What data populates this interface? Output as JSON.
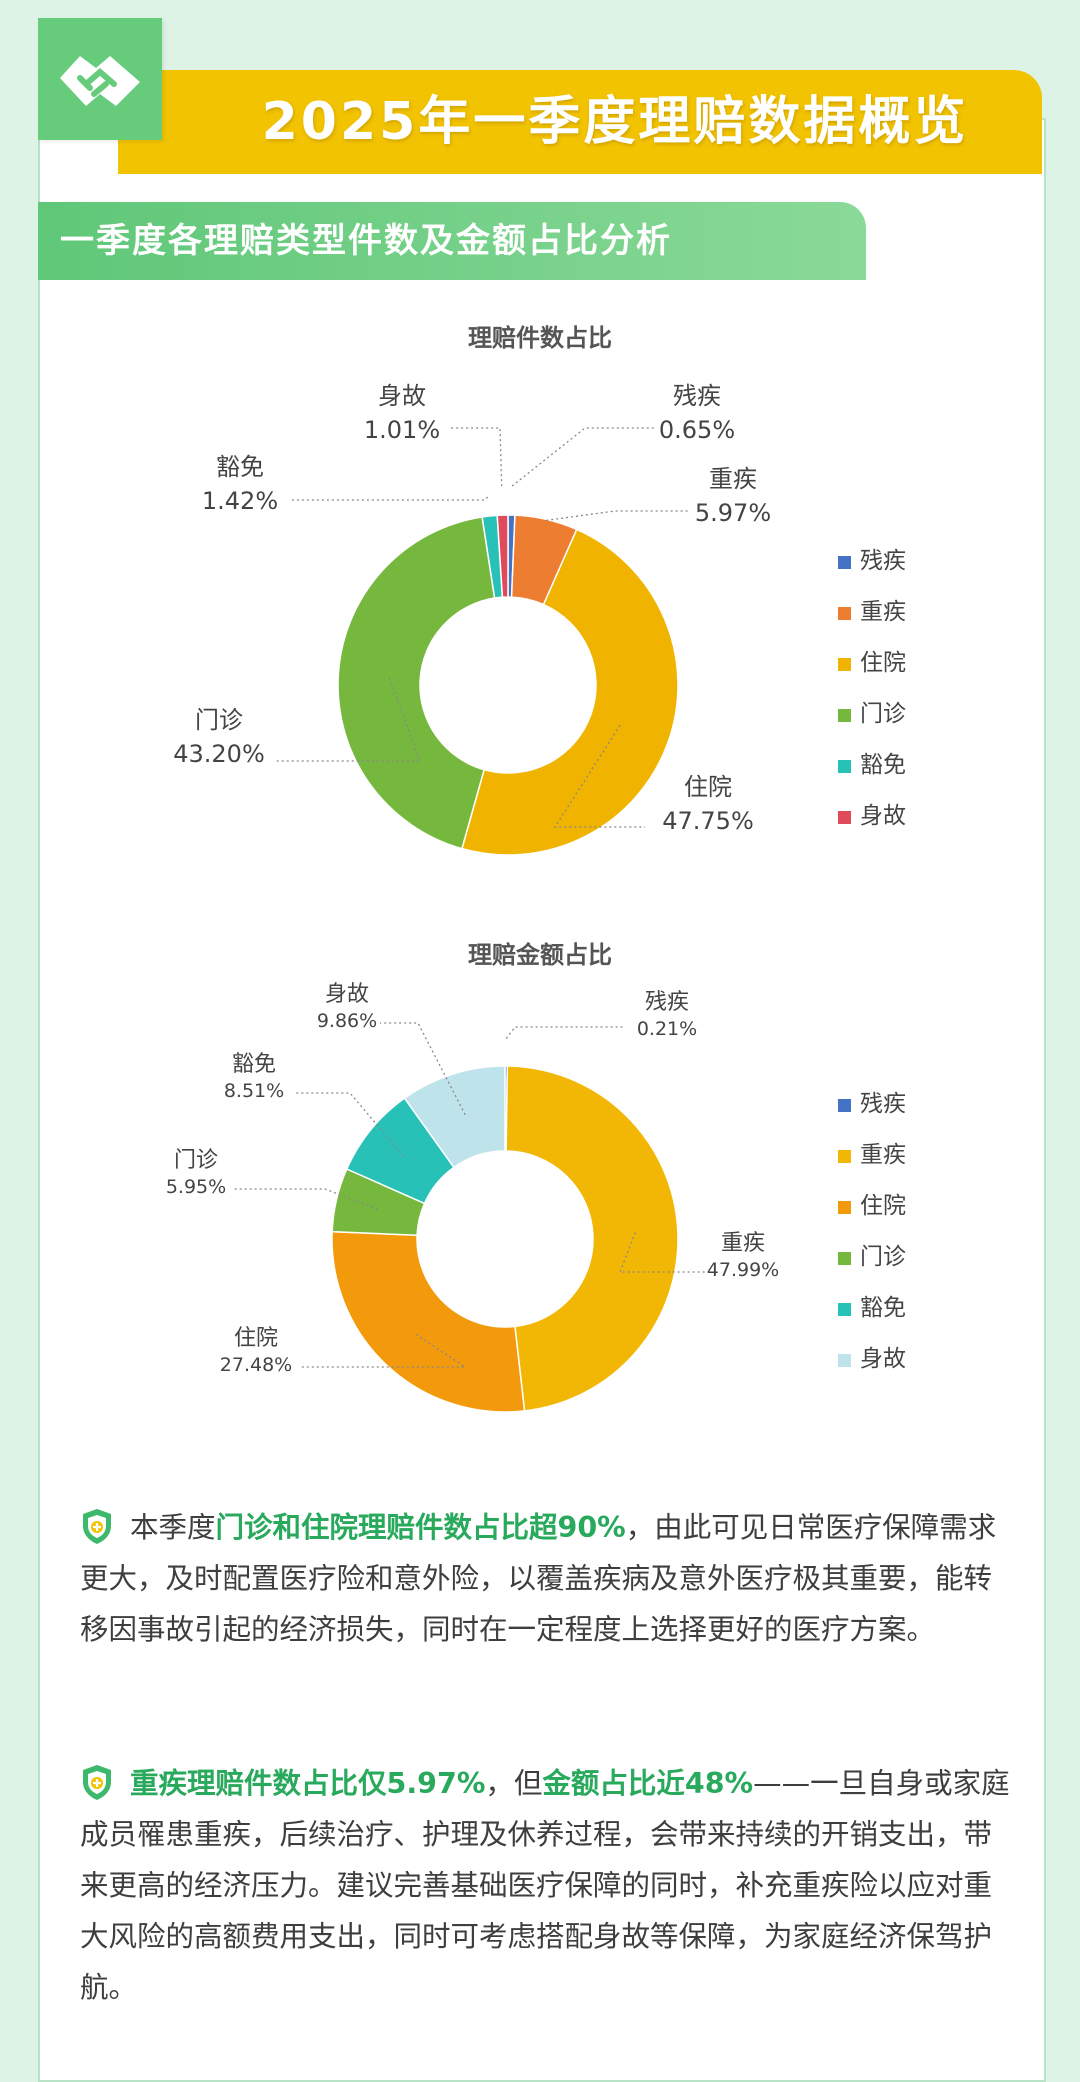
{
  "header": {
    "title": "2025年一季度理赔数据概览",
    "section_title": "一季度各理赔类型件数及金额占比分析"
  },
  "colors": {
    "残疾": "#4472c4",
    "重疾": "#ed7d31",
    "住院": "#f0b400",
    "门诊": "#76b83e",
    "豁免": "#27c1b8",
    "身故": "#e04b5c"
  },
  "chart_data": [
    {
      "type": "pie",
      "donut": true,
      "title": "理赔件数占比",
      "legend_position": "right",
      "slices": [
        {
          "label": "残疾",
          "value": 0.65,
          "value_label": "0.65%",
          "color": "#4472c4"
        },
        {
          "label": "重疾",
          "value": 5.97,
          "value_label": "5.97%",
          "color": "#ed7d31"
        },
        {
          "label": "住院",
          "value": 47.75,
          "value_label": "47.75%",
          "color": "#f0b400"
        },
        {
          "label": "门诊",
          "value": 43.2,
          "value_label": "43.20%",
          "color": "#76b83e"
        },
        {
          "label": "豁免",
          "value": 1.42,
          "value_label": "1.42%",
          "color": "#27c1b8"
        },
        {
          "label": "身故",
          "value": 1.01,
          "value_label": "1.01%",
          "color": "#e04b5c"
        }
      ]
    },
    {
      "type": "pie",
      "donut": true,
      "title": "理赔金额占比",
      "legend_position": "right",
      "slices": [
        {
          "label": "残疾",
          "value": 0.21,
          "value_label": "0.21%",
          "color": "#4472c4"
        },
        {
          "label": "重疾",
          "value": 47.99,
          "value_label": "47.99%",
          "color": "#f2b705"
        },
        {
          "label": "住院",
          "value": 27.48,
          "value_label": "27.48%",
          "color": "#f39a0c"
        },
        {
          "label": "门诊",
          "value": 5.95,
          "value_label": "5.95%",
          "color": "#76b83e"
        },
        {
          "label": "豁免",
          "value": 8.51,
          "value_label": "8.51%",
          "color": "#27c1b8"
        },
        {
          "label": "身故",
          "value": 9.86,
          "value_label": "9.86%",
          "color": "#bfe3ea"
        }
      ]
    }
  ],
  "paragraphs": [
    {
      "parts": [
        {
          "text": "本季度",
          "hl": false
        },
        {
          "text": "门诊和住院理赔件数占比超90%",
          "hl": true
        },
        {
          "text": "，由此可见日常医疗保障需求更大，及时配置医疗险和意外险，以覆盖疾病及意外医疗极其重要，能转移因事故引起的经济损失，同时在一定程度上选择更好的医疗方案。",
          "hl": false
        }
      ]
    },
    {
      "parts": [
        {
          "text": "重疾理赔件数占比仅5.97%",
          "hl": true
        },
        {
          "text": "，但",
          "hl": false
        },
        {
          "text": "金额占比近48%",
          "hl": true
        },
        {
          "text": "——一旦自身或家庭成员罹患重疾，后续治疗、护理及休养过程，会带来持续的开销支出，带来更高的经济压力。建议完善基础医疗保障的同时，补充重疾险以应对重大风险的高额费用支出，同时可考虑搭配身故等保障，为家庭经济保驾护航。",
          "hl": false
        }
      ]
    }
  ]
}
